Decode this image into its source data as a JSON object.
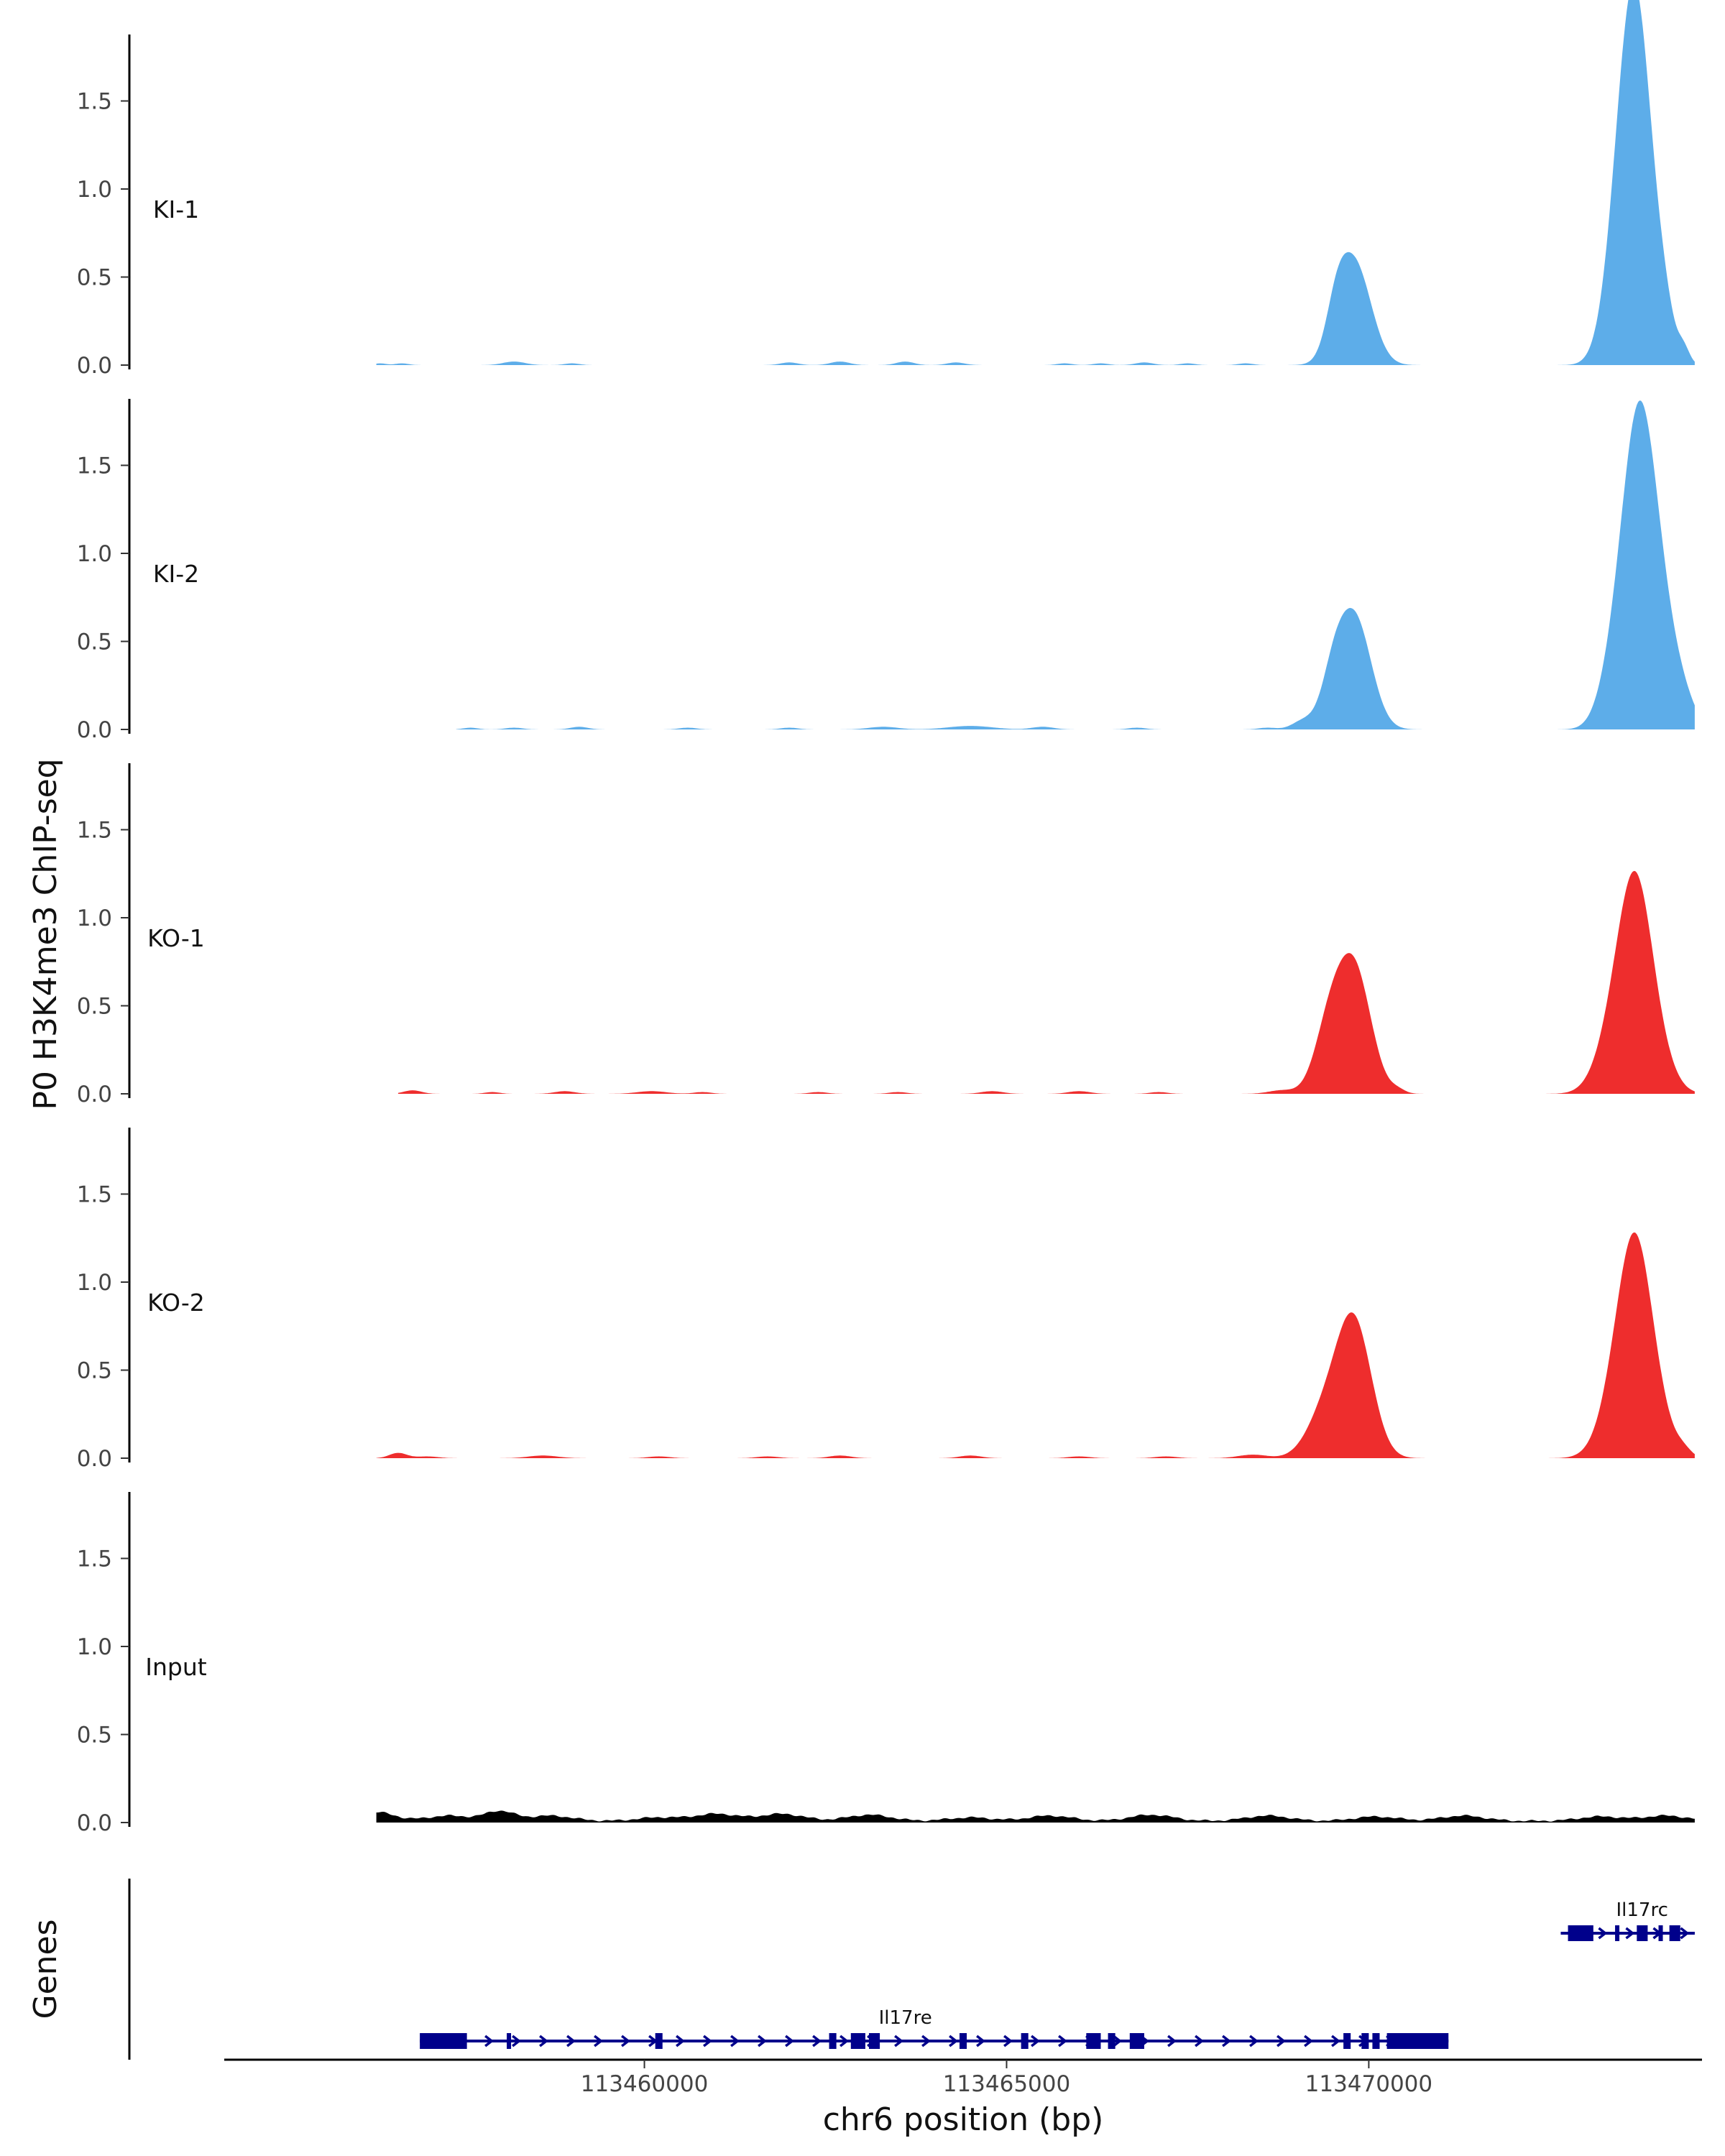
{
  "chart_data": {
    "type": "area",
    "ylabel": "P0 H3K4me3 ChIP-seq",
    "xlabel": "chr6 position (bp)",
    "xlim": [
      113454200,
      113474600
    ],
    "ylim": [
      0,
      1.9
    ],
    "y_ticks": [
      "0.0",
      "0.5",
      "1.0",
      "1.5"
    ],
    "x_ticks": [
      {
        "value": 113460000,
        "label": "113460000"
      },
      {
        "value": 113465000,
        "label": "113465000"
      },
      {
        "value": 113470000,
        "label": "113470000"
      }
    ],
    "tracks": [
      {
        "name": "KI-1",
        "color": "#5dade9",
        "peaks": [
          [
            113469800,
            0.58,
            230
          ],
          [
            113469550,
            0.2,
            140
          ],
          [
            113473700,
            1.78,
            230
          ],
          [
            113473500,
            0.55,
            220
          ],
          [
            113474100,
            0.15,
            130
          ],
          [
            113474350,
            0.08,
            80
          ]
        ],
        "noise": [
          [
            113456350,
            0.01,
            80
          ],
          [
            113456650,
            0.01,
            90
          ],
          [
            113458200,
            0.02,
            150
          ],
          [
            113459000,
            0.01,
            100
          ],
          [
            113462000,
            0.015,
            120
          ],
          [
            113462700,
            0.02,
            130
          ],
          [
            113463600,
            0.02,
            120
          ],
          [
            113464300,
            0.015,
            120
          ],
          [
            113465800,
            0.01,
            100
          ],
          [
            113466300,
            0.01,
            100
          ],
          [
            113466900,
            0.015,
            120
          ],
          [
            113467500,
            0.01,
            100
          ],
          [
            113468300,
            0.01,
            100
          ]
        ],
        "range": [
          113456300,
          113474500
        ]
      },
      {
        "name": "KI-2",
        "color": "#5dade9",
        "peaks": [
          [
            113469800,
            0.64,
            230
          ],
          [
            113469500,
            0.22,
            160
          ],
          [
            113469100,
            0.05,
            150
          ],
          [
            113473700,
            1.33,
            230
          ],
          [
            113473950,
            0.7,
            280
          ],
          [
            113473350,
            0.2,
            200
          ],
          [
            113474350,
            0.05,
            160
          ]
        ],
        "noise": [
          [
            113457600,
            0.01,
            100
          ],
          [
            113458200,
            0.01,
            120
          ],
          [
            113459100,
            0.015,
            120
          ],
          [
            113460600,
            0.01,
            120
          ],
          [
            113462000,
            0.01,
            120
          ],
          [
            113463300,
            0.015,
            200
          ],
          [
            113464500,
            0.02,
            300
          ],
          [
            113465500,
            0.015,
            150
          ],
          [
            113466800,
            0.01,
            120
          ],
          [
            113468600,
            0.01,
            120
          ]
        ],
        "range": [
          113457400,
          113474500
        ]
      },
      {
        "name": "KO-1",
        "color": "#ee2d2d",
        "peaks": [
          [
            113469800,
            0.7,
            230
          ],
          [
            113469450,
            0.35,
            200
          ],
          [
            113473700,
            1.1,
            240
          ],
          [
            113473400,
            0.3,
            250
          ],
          [
            113474100,
            0.07,
            200
          ],
          [
            113470400,
            0.02,
            100
          ]
        ],
        "noise": [
          [
            113456800,
            0.02,
            120
          ],
          [
            113457900,
            0.01,
            100
          ],
          [
            113458900,
            0.015,
            140
          ],
          [
            113460100,
            0.015,
            200
          ],
          [
            113460800,
            0.01,
            120
          ],
          [
            113462400,
            0.01,
            120
          ],
          [
            113463500,
            0.01,
            120
          ],
          [
            113464800,
            0.015,
            150
          ],
          [
            113466000,
            0.015,
            150
          ],
          [
            113467100,
            0.01,
            120
          ],
          [
            113468800,
            0.02,
            180
          ]
        ],
        "range": [
          113456600,
          113474500
        ]
      },
      {
        "name": "KO-2",
        "color": "#ee2d2d",
        "peaks": [
          [
            113469800,
            0.75,
            240
          ],
          [
            113469400,
            0.25,
            250
          ],
          [
            113473700,
            1.08,
            240
          ],
          [
            113473450,
            0.3,
            250
          ],
          [
            113474100,
            0.07,
            200
          ],
          [
            113474350,
            0.03,
            100
          ]
        ],
        "noise": [
          [
            113456600,
            0.03,
            120
          ],
          [
            113457000,
            0.01,
            150
          ],
          [
            113458600,
            0.015,
            200
          ],
          [
            113460200,
            0.01,
            150
          ],
          [
            113461700,
            0.01,
            150
          ],
          [
            113462700,
            0.015,
            150
          ],
          [
            113464500,
            0.015,
            150
          ],
          [
            113466000,
            0.01,
            150
          ],
          [
            113467200,
            0.01,
            150
          ],
          [
            113468400,
            0.02,
            200
          ]
        ],
        "range": [
          113456300,
          113474500
        ]
      },
      {
        "name": "Input",
        "color": "#000000",
        "peaks": [],
        "noise": [
          [
            113456300,
            0.05,
            250
          ],
          [
            113457300,
            0.03,
            300
          ],
          [
            113458000,
            0.055,
            200
          ],
          [
            113458700,
            0.03,
            300
          ],
          [
            113460200,
            0.02,
            300
          ],
          [
            113461000,
            0.04,
            300
          ],
          [
            113461900,
            0.04,
            300
          ],
          [
            113463100,
            0.035,
            300
          ],
          [
            113464500,
            0.02,
            300
          ],
          [
            113465600,
            0.03,
            300
          ],
          [
            113467000,
            0.035,
            300
          ],
          [
            113468600,
            0.03,
            300
          ],
          [
            113470100,
            0.025,
            300
          ],
          [
            113471300,
            0.03,
            300
          ],
          [
            113473200,
            0.025,
            300
          ],
          [
            113474100,
            0.03,
            300
          ]
        ],
        "range": [
          113456300,
          113474500
        ],
        "baseline": 0.015
      }
    ],
    "genes_track": {
      "title": "Genes",
      "color": "#00008b",
      "genes": [
        {
          "name": "Il17re",
          "start": 113456900,
          "end": 113471100,
          "row": 1,
          "exons": [
            [
              113456900,
              113457550
            ],
            [
              113458100,
              113458150
            ],
            [
              113460150,
              113460250
            ],
            [
              113462550,
              113462650
            ],
            [
              113462850,
              113463050
            ],
            [
              113463100,
              113463250
            ],
            [
              113464350,
              113464450
            ],
            [
              113465200,
              113465300
            ],
            [
              113466100,
              113466300
            ],
            [
              113466400,
              113466500
            ],
            [
              113466700,
              113466900
            ],
            [
              113469650,
              113469750
            ],
            [
              113469900,
              113470000
            ],
            [
              113470050,
              113470150
            ],
            [
              113470250,
              113471100
            ]
          ]
        },
        {
          "name": "Il17rc",
          "start": 113472650,
          "end": 113474500,
          "row": 0,
          "exons": [
            [
              113472750,
              113473100
            ],
            [
              113473400,
              113473450
            ],
            [
              113473700,
              113473850
            ],
            [
              113474000,
              113474050
            ],
            [
              113474150,
              113474300
            ]
          ]
        }
      ]
    }
  }
}
